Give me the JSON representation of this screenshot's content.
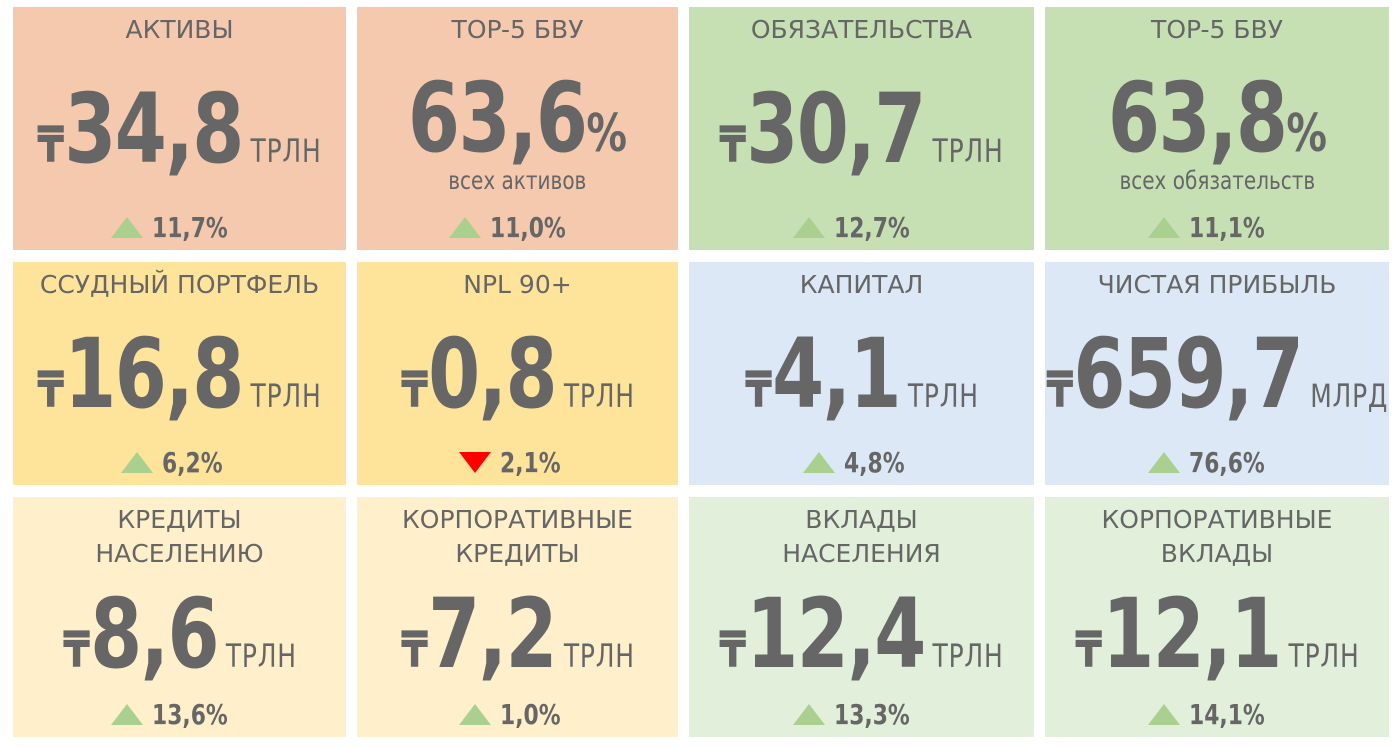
{
  "tiles": [
    {
      "title": [
        "АКТИВЫ"
      ],
      "currency": "₸",
      "value": "34,8",
      "unit": "ТРЛН",
      "change": "11,7%",
      "direction": "up",
      "color": "#f5c9ae"
    },
    {
      "title": [
        "TOP-5 БВУ"
      ],
      "value": "63,6",
      "suffix": "%",
      "subtitle": "всех активов",
      "change": "11,0%",
      "direction": "up",
      "color": "#f5c9ae"
    },
    {
      "title": [
        "ОБЯЗАТЕЛЬСТВА"
      ],
      "currency": "₸",
      "value": "30,7",
      "unit": "ТРЛН",
      "change": "12,7%",
      "direction": "up",
      "color": "#c6e0b4"
    },
    {
      "title": [
        "TOP-5 БВУ"
      ],
      "value": "63,8",
      "suffix": "%",
      "subtitle": "всех обязательств",
      "change": "11,1%",
      "direction": "up",
      "color": "#c6e0b4"
    },
    {
      "title": [
        "ССУДНЫЙ ПОРТФЕЛЬ"
      ],
      "currency": "₸",
      "value": "16,8",
      "unit": "ТРЛН",
      "change": "6,2%",
      "direction": "up",
      "color": "#fee39b"
    },
    {
      "title": [
        "NPL 90+"
      ],
      "currency": "₸",
      "value": "0,8",
      "unit": "ТРЛН",
      "change": "2,1%",
      "direction": "down",
      "color": "#fee39b"
    },
    {
      "title": [
        "КАПИТАЛ"
      ],
      "currency": "₸",
      "value": "4,1",
      "unit": "ТРЛН",
      "change": "4,8%",
      "direction": "up",
      "color": "#dce8f6"
    },
    {
      "title": [
        "ЧИСТАЯ ПРИБЫЛЬ"
      ],
      "currency": "₸",
      "value": "659,7",
      "unit": "МЛРД",
      "change": "76,6%",
      "direction": "up",
      "color": "#dce8f6"
    },
    {
      "title": [
        "КРЕДИТЫ",
        "НАСЕЛЕНИЮ"
      ],
      "currency": "₸",
      "value": "8,6",
      "unit": "ТРЛН",
      "change": "13,6%",
      "direction": "up",
      "color": "#fff0cb"
    },
    {
      "title": [
        "КОРПОРАТИВНЫЕ",
        "КРЕДИТЫ"
      ],
      "currency": "₸",
      "value": "7,2",
      "unit": "ТРЛН",
      "change": "1,0%",
      "direction": "up",
      "color": "#fff0cb"
    },
    {
      "title": [
        "ВКЛАДЫ",
        "НАСЕЛЕНИЯ"
      ],
      "currency": "₸",
      "value": "12,4",
      "unit": "ТРЛН",
      "change": "13,3%",
      "direction": "up",
      "color": "#e2efda"
    },
    {
      "title": [
        "КОРПОРАТИВНЫЕ",
        "ВКЛАДЫ"
      ],
      "currency": "₸",
      "value": "12,1",
      "unit": "ТРЛН",
      "change": "14,1%",
      "direction": "up",
      "color": "#e2efda"
    }
  ]
}
